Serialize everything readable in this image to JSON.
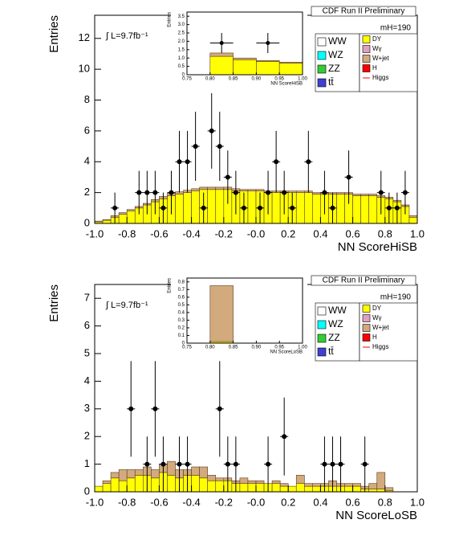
{
  "chart_data": [
    {
      "type": "histogram",
      "title": "CDF Run II Preliminary",
      "xlabel": "NN ScoreHiSB",
      "ylabel": "Entries",
      "annotations": [
        "∫ L=9.7fb⁻¹",
        "mH=190"
      ],
      "xlim": [
        -1,
        1
      ],
      "xticks": [
        {
          "value": -1,
          "label": "-1.0"
        },
        {
          "value": -0.8,
          "label": "-0.8"
        },
        {
          "value": -0.6,
          "label": "-0.6"
        },
        {
          "value": -0.4,
          "label": "-0.4"
        },
        {
          "value": -0.2,
          "label": "-0.2"
        },
        {
          "value": 0,
          "label": "-0.0"
        },
        {
          "value": 0.2,
          "label": "0.2"
        },
        {
          "value": 0.4,
          "label": "0.4"
        },
        {
          "value": 0.6,
          "label": "0.6"
        },
        {
          "value": 0.8,
          "label": "0.8"
        },
        {
          "value": 1,
          "label": "1.0"
        }
      ],
      "ylim": [
        0,
        13.5
      ],
      "yticks": [
        0,
        2,
        4,
        6,
        8,
        10,
        12
      ],
      "bins": [
        -1,
        -0.95,
        -0.9,
        -0.85,
        -0.8,
        -0.75,
        -0.7,
        -0.65,
        -0.6,
        -0.55,
        -0.5,
        -0.45,
        -0.4,
        -0.35,
        -0.3,
        -0.25,
        -0.2,
        -0.15,
        -0.1,
        -0.05,
        0,
        0.05,
        0.1,
        0.15,
        0.2,
        0.25,
        0.3,
        0.35,
        0.4,
        0.45,
        0.5,
        0.55,
        0.6,
        0.65,
        0.7,
        0.75,
        0.8,
        0.85,
        0.9,
        0.95,
        1
      ],
      "series": [
        {
          "name": "WW",
          "color": "#ffffff"
        },
        {
          "name": "WZ",
          "color": "#00ffff"
        },
        {
          "name": "ZZ",
          "color": "#33cc33"
        },
        {
          "name": "tt̄",
          "color": "#4040d0"
        },
        {
          "name": "DY",
          "color": "#ffff00",
          "values": [
            0.1,
            0.2,
            0.4,
            0.6,
            0.8,
            1.0,
            1.2,
            1.4,
            1.6,
            1.8,
            1.9,
            2.0,
            2.1,
            2.2,
            2.2,
            2.2,
            2.2,
            2.1,
            2.1,
            2.1,
            2.1,
            2.0,
            2.0,
            2.0,
            2.0,
            2.0,
            2.0,
            1.9,
            1.9,
            1.9,
            1.9,
            1.9,
            1.8,
            1.8,
            1.8,
            1.7,
            1.6,
            1.4,
            1.1,
            0.4
          ]
        },
        {
          "name": "Wγ",
          "color": "#e0a0c0"
        },
        {
          "name": "W+jet",
          "color": "#d2aa7d",
          "values": [
            0.05,
            0.05,
            0.1,
            0.1,
            0.1,
            0.1,
            0.1,
            0.15,
            0.15,
            0.15,
            0.15,
            0.15,
            0.15,
            0.15,
            0.15,
            0.15,
            0.15,
            0.15,
            0.1,
            0.1,
            0.1,
            0.1,
            0.1,
            0.1,
            0.1,
            0.1,
            0.1,
            0.1,
            0.1,
            0.1,
            0.1,
            0.1,
            0.1,
            0.1,
            0.1,
            0.1,
            0.1,
            0.1,
            0.1,
            0.1
          ]
        },
        {
          "name": "H",
          "color": "#ff0000"
        },
        {
          "name": "Higgs",
          "color": "#ff0000"
        }
      ],
      "points": {
        "x": [
          -0.875,
          -0.725,
          -0.675,
          -0.625,
          -0.575,
          -0.525,
          -0.475,
          -0.425,
          -0.375,
          -0.325,
          -0.275,
          -0.225,
          -0.175,
          -0.125,
          -0.075,
          0.025,
          0.075,
          0.125,
          0.175,
          0.225,
          0.325,
          0.425,
          0.475,
          0.575,
          0.775,
          0.825,
          0.875,
          0.925
        ],
        "values": [
          1,
          2,
          2,
          2,
          1,
          2,
          4,
          4,
          5,
          1,
          6,
          5,
          3,
          2,
          1,
          1,
          2,
          4,
          2,
          1,
          4,
          2,
          1,
          3,
          2,
          1,
          1,
          2
        ],
        "errors": [
          1,
          1.41,
          1.41,
          1.41,
          1,
          1.41,
          2,
          2,
          2.24,
          1,
          2.45,
          2.24,
          1.73,
          1.41,
          1,
          1,
          1.41,
          2,
          1.41,
          1,
          2,
          1.41,
          1,
          1.73,
          1.41,
          1,
          1,
          1.41
        ]
      },
      "inset": {
        "xlabel": "NN ScoreHiSB",
        "ylabel": "Entries",
        "xlim": [
          0.75,
          1
        ],
        "xticks": [
          0.75,
          {
            "value": 0.8,
            "label": "0.80"
          },
          0.85,
          {
            "value": 0.9,
            "label": "0.90"
          },
          0.95,
          {
            "value": 1,
            "label": "1.00"
          }
        ],
        "ylim": [
          0,
          3.75
        ],
        "yticks": [
          0,
          0.5,
          {
            "value": 1,
            "label": "1.0"
          },
          1.5,
          {
            "value": 2,
            "label": "2.0"
          },
          2.5,
          {
            "value": 3,
            "label": "3.0"
          },
          3.5
        ],
        "bins": [
          0.75,
          0.8,
          0.85,
          0.9,
          0.95,
          1
        ],
        "series": [
          {
            "color": "#ffff00",
            "values": [
              0,
              1.1,
              0.9,
              0.8,
              0.7
            ]
          },
          {
            "color": "#d2aa7d",
            "values": [
              0,
              0.2,
              0.1,
              0.05,
              0.05
            ]
          }
        ],
        "points": {
          "x": [
            0.825,
            0.925
          ],
          "values": [
            1.9,
            1.9
          ],
          "errors": [
            0.6,
            0.6
          ]
        }
      }
    },
    {
      "type": "histogram",
      "title": "CDF Run II Preliminary",
      "xlabel": "NN ScoreLoSB",
      "ylabel": "Entries",
      "annotations": [
        "∫ L=9.7fb⁻¹",
        "mH=190"
      ],
      "xlim": [
        -1,
        1
      ],
      "xticks": [
        {
          "value": -1,
          "label": "-1.0"
        },
        {
          "value": -0.8,
          "label": "-0.8"
        },
        {
          "value": -0.6,
          "label": "-0.6"
        },
        {
          "value": -0.4,
          "label": "-0.4"
        },
        {
          "value": -0.2,
          "label": "-0.2"
        },
        {
          "value": 0,
          "label": "-0.0"
        },
        {
          "value": 0.2,
          "label": "0.2"
        },
        {
          "value": 0.4,
          "label": "0.4"
        },
        {
          "value": 0.6,
          "label": "0.6"
        },
        {
          "value": 0.8,
          "label": "0.8"
        },
        {
          "value": 1,
          "label": "1.0"
        }
      ],
      "ylim": [
        0,
        7.5
      ],
      "yticks": [
        0,
        1,
        2,
        3,
        4,
        5,
        6,
        7
      ],
      "bins": [
        -1,
        -0.95,
        -0.9,
        -0.85,
        -0.8,
        -0.75,
        -0.7,
        -0.65,
        -0.6,
        -0.55,
        -0.5,
        -0.45,
        -0.4,
        -0.35,
        -0.3,
        -0.25,
        -0.2,
        -0.15,
        -0.1,
        -0.05,
        0,
        0.05,
        0.1,
        0.15,
        0.2,
        0.25,
        0.3,
        0.35,
        0.4,
        0.45,
        0.5,
        0.55,
        0.6,
        0.65,
        0.7,
        0.75,
        0.8,
        0.85,
        0.9,
        0.95,
        1
      ],
      "series": [
        {
          "name": "WW",
          "color": "#ffffff"
        },
        {
          "name": "WZ",
          "color": "#00ffff"
        },
        {
          "name": "ZZ",
          "color": "#33cc33"
        },
        {
          "name": "tt̄",
          "color": "#4040d0"
        },
        {
          "name": "DY",
          "color": "#ffff00",
          "values": [
            0.2,
            0.3,
            0.5,
            0.4,
            0.5,
            0.6,
            0.6,
            0.5,
            0.7,
            0.6,
            0.5,
            0.6,
            0.6,
            0.5,
            0.4,
            0.4,
            0.4,
            0.3,
            0.3,
            0.3,
            0.3,
            0.3,
            0.3,
            0.2,
            0.2,
            0.3,
            0.2,
            0.2,
            0.2,
            0.2,
            0.2,
            0.2,
            0.2,
            0.1,
            0.1,
            0.1,
            0.05,
            0,
            0,
            0
          ]
        },
        {
          "name": "Wγ",
          "color": "#e0a0c0"
        },
        {
          "name": "W+jet",
          "color": "#d2aa7d",
          "values": [
            0,
            0.1,
            0.2,
            0.4,
            0.3,
            0.2,
            0.3,
            0.3,
            0.3,
            0.5,
            0.3,
            0.2,
            0.3,
            0.4,
            0.2,
            0.1,
            0.1,
            0.1,
            0.2,
            0.1,
            0.1,
            0,
            0.1,
            0.1,
            0,
            0.3,
            0.1,
            0.1,
            0.1,
            0.2,
            0.1,
            0.1,
            0.1,
            0.1,
            0.2,
            0.6,
            0.1,
            0,
            0,
            0
          ]
        },
        {
          "name": "H",
          "color": "#ff0000"
        },
        {
          "name": "Higgs",
          "color": "#ff0000"
        }
      ],
      "points": {
        "x": [
          -0.775,
          -0.675,
          -0.625,
          -0.575,
          -0.475,
          -0.425,
          -0.225,
          -0.175,
          -0.125,
          0.075,
          0.175,
          0.425,
          0.475,
          0.525,
          0.675
        ],
        "values": [
          3,
          1,
          3,
          1,
          1,
          1,
          3,
          1,
          1,
          1,
          2,
          1,
          1,
          1,
          1
        ],
        "errors": [
          1.73,
          1,
          1.73,
          1,
          1,
          1,
          1.73,
          1,
          1,
          1,
          1.41,
          1,
          1,
          1,
          1
        ]
      },
      "inset": {
        "xlabel": "NN ScoreLoSB",
        "ylabel": "Entries",
        "xlim": [
          0.75,
          1
        ],
        "xticks": [
          0.75,
          {
            "value": 0.8,
            "label": "0.80"
          },
          0.85,
          {
            "value": 0.9,
            "label": "0.90"
          },
          0.95,
          {
            "value": 1,
            "label": "1.00"
          }
        ],
        "ylim": [
          0,
          0.85
        ],
        "yticks": [
          0,
          0.1,
          0.2,
          0.3,
          0.4,
          0.5,
          0.6,
          0.7,
          0.8
        ],
        "bins": [
          0.75,
          0.8,
          0.85,
          0.9,
          0.95,
          1
        ],
        "series": [
          {
            "color": "#ffff00",
            "values": [
              0,
              0.02,
              0,
              0,
              0
            ]
          },
          {
            "color": "#d2aa7d",
            "values": [
              0,
              0.73,
              0,
              0,
              0
            ]
          }
        ]
      }
    }
  ]
}
